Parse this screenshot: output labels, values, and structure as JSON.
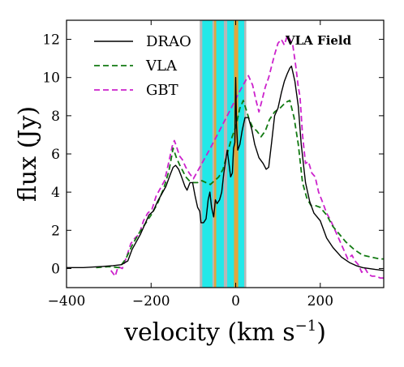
{
  "chart_data": {
    "type": "line",
    "xlabel": "velocity (km s",
    "xlabel_sup": "−1",
    "xlabel_close": ")",
    "ylabel": "flux (Jy)",
    "annotation": "VLA Field",
    "xlim": [
      -400,
      350
    ],
    "ylim": [
      -1,
      13
    ],
    "xticks": [
      -400,
      -200,
      0,
      200
    ],
    "xtick_labels": [
      "−400",
      "−200",
      "0",
      "200"
    ],
    "yticks": [
      0,
      2,
      4,
      6,
      8,
      10,
      12
    ],
    "ytick_labels": [
      "0",
      "2",
      "4",
      "6",
      "8",
      "10",
      "12"
    ],
    "legend_position": "top-left",
    "bands": [
      {
        "x0": -85,
        "x1": 25,
        "color": "#b7b7b7"
      },
      {
        "x0": -79,
        "x1": -55,
        "color": "#22e8e8"
      },
      {
        "x0": -50,
        "x1": -28,
        "color": "#22e8e8"
      },
      {
        "x0": -20,
        "x1": 20,
        "color": "#22e8e8"
      },
      {
        "x0": -51,
        "x1": -46,
        "color": "#e0a63c"
      },
      {
        "x0": -4,
        "x1": 6,
        "color": "#e0a63c"
      }
    ],
    "series": [
      {
        "name": "DRAO",
        "color": "#000000",
        "dash": "solid",
        "points": [
          [
            -400,
            0.05
          ],
          [
            -360,
            0.05
          ],
          [
            -320,
            0.1
          ],
          [
            -290,
            0.15
          ],
          [
            -270,
            0.2
          ],
          [
            -255,
            0.4
          ],
          [
            -245,
            1.0
          ],
          [
            -235,
            1.4
          ],
          [
            -225,
            1.8
          ],
          [
            -215,
            2.3
          ],
          [
            -205,
            2.8
          ],
          [
            -195,
            3.0
          ],
          [
            -185,
            3.5
          ],
          [
            -175,
            3.9
          ],
          [
            -165,
            4.3
          ],
          [
            -155,
            4.9
          ],
          [
            -148,
            5.3
          ],
          [
            -142,
            5.4
          ],
          [
            -135,
            5.2
          ],
          [
            -128,
            4.8
          ],
          [
            -120,
            4.3
          ],
          [
            -115,
            4.1
          ],
          [
            -108,
            4.5
          ],
          [
            -102,
            4.5
          ],
          [
            -96,
            3.8
          ],
          [
            -90,
            3.2
          ],
          [
            -85,
            3.0
          ],
          [
            -82,
            2.4
          ],
          [
            -76,
            2.4
          ],
          [
            -70,
            2.6
          ],
          [
            -65,
            3.6
          ],
          [
            -61,
            4.0
          ],
          [
            -57,
            3.2
          ],
          [
            -52,
            2.7
          ],
          [
            -48,
            3.6
          ],
          [
            -44,
            3.4
          ],
          [
            -38,
            3.6
          ],
          [
            -33,
            4.0
          ],
          [
            -28,
            5.0
          ],
          [
            -24,
            5.6
          ],
          [
            -20,
            6.2
          ],
          [
            -16,
            5.5
          ],
          [
            -12,
            4.8
          ],
          [
            -8,
            5.0
          ],
          [
            -5,
            6.3
          ],
          [
            -2,
            6.6
          ],
          [
            0,
            10.0
          ],
          [
            2,
            7.5
          ],
          [
            5,
            6.2
          ],
          [
            10,
            6.5
          ],
          [
            15,
            7.2
          ],
          [
            22,
            7.9
          ],
          [
            30,
            7.9
          ],
          [
            38,
            7.3
          ],
          [
            45,
            6.5
          ],
          [
            55,
            5.8
          ],
          [
            65,
            5.5
          ],
          [
            72,
            5.2
          ],
          [
            78,
            5.3
          ],
          [
            85,
            6.6
          ],
          [
            92,
            8.0
          ],
          [
            100,
            8.4
          ],
          [
            108,
            9.2
          ],
          [
            115,
            9.8
          ],
          [
            122,
            10.2
          ],
          [
            128,
            10.5
          ],
          [
            132,
            10.6
          ],
          [
            140,
            9.8
          ],
          [
            148,
            8.5
          ],
          [
            155,
            6.5
          ],
          [
            165,
            4.5
          ],
          [
            175,
            3.5
          ],
          [
            185,
            2.9
          ],
          [
            200,
            2.5
          ],
          [
            215,
            1.6
          ],
          [
            230,
            1.1
          ],
          [
            250,
            0.6
          ],
          [
            270,
            0.3
          ],
          [
            285,
            0.15
          ],
          [
            300,
            0.05
          ],
          [
            315,
            0.0
          ],
          [
            330,
            -0.05
          ],
          [
            350,
            -0.1
          ]
        ]
      },
      {
        "name": "VLA",
        "color": "#127a12",
        "dash": "dashed",
        "points": [
          [
            -330,
            0.05
          ],
          [
            -300,
            0.1
          ],
          [
            -275,
            0.05
          ],
          [
            -260,
            0.5
          ],
          [
            -245,
            1.2
          ],
          [
            -230,
            1.8
          ],
          [
            -215,
            2.3
          ],
          [
            -200,
            2.8
          ],
          [
            -185,
            3.4
          ],
          [
            -170,
            4.2
          ],
          [
            -158,
            5.1
          ],
          [
            -148,
            6.3
          ],
          [
            -140,
            5.8
          ],
          [
            -132,
            5.4
          ],
          [
            -125,
            5.1
          ],
          [
            -118,
            4.8
          ],
          [
            -110,
            4.6
          ],
          [
            -100,
            4.5
          ],
          [
            -90,
            4.5
          ],
          [
            -80,
            4.6
          ],
          [
            -70,
            4.5
          ],
          [
            -60,
            4.4
          ],
          [
            -50,
            4.6
          ],
          [
            -40,
            4.8
          ],
          [
            -30,
            5.2
          ],
          [
            -20,
            6.0
          ],
          [
            -10,
            6.8
          ],
          [
            0,
            7.4
          ],
          [
            10,
            8.4
          ],
          [
            18,
            8.8
          ],
          [
            25,
            8.3
          ],
          [
            32,
            7.8
          ],
          [
            40,
            7.4
          ],
          [
            50,
            7.2
          ],
          [
            60,
            6.9
          ],
          [
            70,
            7.2
          ],
          [
            80,
            7.8
          ],
          [
            92,
            8.2
          ],
          [
            105,
            8.4
          ],
          [
            118,
            8.7
          ],
          [
            128,
            8.8
          ],
          [
            138,
            7.9
          ],
          [
            148,
            6.5
          ],
          [
            158,
            4.5
          ],
          [
            168,
            3.7
          ],
          [
            178,
            3.3
          ],
          [
            188,
            3.3
          ],
          [
            200,
            3.2
          ],
          [
            215,
            2.8
          ],
          [
            230,
            2.2
          ],
          [
            245,
            1.8
          ],
          [
            260,
            1.4
          ],
          [
            280,
            1.0
          ],
          [
            300,
            0.7
          ],
          [
            320,
            0.6
          ],
          [
            340,
            0.5
          ],
          [
            350,
            0.5
          ]
        ]
      },
      {
        "name": "GBT",
        "color": "#cc22cc",
        "dash": "dashed",
        "points": [
          [
            -295,
            -0.1
          ],
          [
            -285,
            -0.4
          ],
          [
            -278,
            0.1
          ],
          [
            -268,
            0.0
          ],
          [
            -258,
            0.6
          ],
          [
            -248,
            1.3
          ],
          [
            -238,
            1.6
          ],
          [
            -228,
            1.8
          ],
          [
            -218,
            2.5
          ],
          [
            -208,
            2.9
          ],
          [
            -198,
            3.1
          ],
          [
            -188,
            3.8
          ],
          [
            -178,
            4.2
          ],
          [
            -168,
            4.6
          ],
          [
            -158,
            5.6
          ],
          [
            -150,
            6.4
          ],
          [
            -145,
            6.7
          ],
          [
            -140,
            6.4
          ],
          [
            -133,
            5.9
          ],
          [
            -126,
            5.7
          ],
          [
            -118,
            5.3
          ],
          [
            -110,
            5.0
          ],
          [
            -100,
            4.7
          ],
          [
            -60,
            6.3
          ],
          [
            -20,
            8.0
          ],
          [
            10,
            9.3
          ],
          [
            30,
            10.1
          ],
          [
            40,
            9.6
          ],
          [
            48,
            8.8
          ],
          [
            55,
            8.2
          ],
          [
            62,
            8.8
          ],
          [
            70,
            9.5
          ],
          [
            78,
            10.0
          ],
          [
            85,
            10.6
          ],
          [
            92,
            11.2
          ],
          [
            100,
            11.8
          ],
          [
            108,
            12.0
          ],
          [
            115,
            11.7
          ],
          [
            122,
            12.2
          ],
          [
            128,
            12.0
          ],
          [
            135,
            11.7
          ],
          [
            142,
            10.6
          ],
          [
            148,
            9.5
          ],
          [
            152,
            9.0
          ],
          [
            158,
            7.0
          ],
          [
            165,
            5.5
          ],
          [
            172,
            5.6
          ],
          [
            180,
            5.0
          ],
          [
            188,
            4.8
          ],
          [
            196,
            4.0
          ],
          [
            205,
            3.5
          ],
          [
            215,
            2.9
          ],
          [
            225,
            2.5
          ],
          [
            235,
            2.0
          ],
          [
            245,
            1.5
          ],
          [
            255,
            1.0
          ],
          [
            265,
            0.5
          ],
          [
            275,
            0.7
          ],
          [
            282,
            0.4
          ],
          [
            290,
            0.2
          ],
          [
            298,
            -0.2
          ],
          [
            306,
            0.0
          ],
          [
            314,
            -0.3
          ],
          [
            322,
            -0.4
          ],
          [
            332,
            -0.4
          ],
          [
            342,
            -0.5
          ],
          [
            350,
            -0.5
          ]
        ]
      }
    ]
  }
}
